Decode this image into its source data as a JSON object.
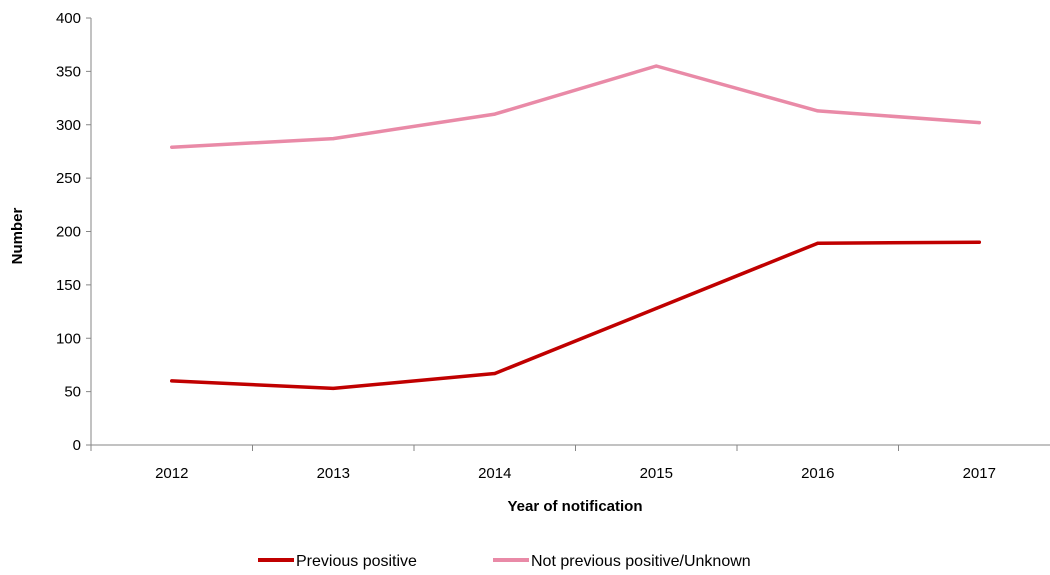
{
  "chart_data": {
    "type": "line",
    "categories": [
      "2012",
      "2013",
      "2014",
      "2015",
      "2016",
      "2017"
    ],
    "xlabel": "Year of notification",
    "ylabel": "Number",
    "ylim": [
      0,
      400
    ],
    "yticks": [
      0,
      50,
      100,
      150,
      200,
      250,
      300,
      350,
      400
    ],
    "grid": false,
    "legend_position": "bottom",
    "series": [
      {
        "name": "Previous positive",
        "color": "#C00000",
        "values": [
          60,
          53,
          67,
          128,
          189,
          190
        ]
      },
      {
        "name": "Not previous positive/Unknown",
        "color": "#E98AA7",
        "values": [
          279,
          287,
          310,
          355,
          313,
          302
        ]
      }
    ]
  }
}
